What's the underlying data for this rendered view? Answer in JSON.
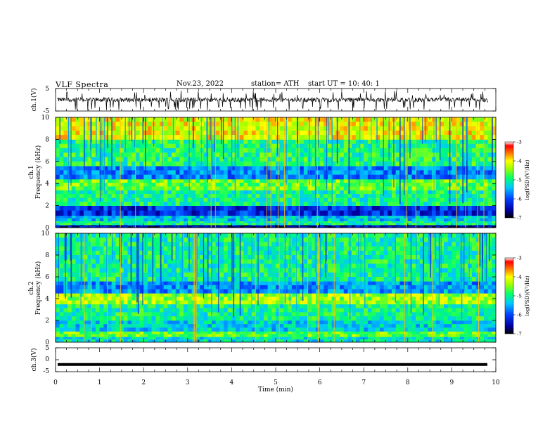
{
  "header": {
    "title": "VLF  Spectra",
    "date": "Nov.23, 2022",
    "station": "station= ATH",
    "start_ut": "start  UT  =    10: 40: 1"
  },
  "chart_data": [
    {
      "type": "line",
      "panel": "ch1-waveform",
      "ylabel": "ch.1(V)",
      "ylim": [
        -5,
        5
      ],
      "yticks": [
        "5",
        "-5"
      ],
      "xlim": [
        0,
        10
      ],
      "series": [
        {
          "color": "#000000",
          "baseline": 0,
          "amplitude_typical": 1,
          "spikes_to": [
            -5,
            4
          ]
        }
      ]
    },
    {
      "type": "heatmap",
      "panel": "ch1-spectrogram",
      "ylabel": "ch.1\nFrequency  (kHz)",
      "ylabel_line1": "ch.1",
      "ylabel_line2": "Frequency  (kHz)",
      "ylim": [
        0,
        10
      ],
      "yticks": [
        "0",
        "2",
        "4",
        "6",
        "8",
        "10"
      ],
      "xlim": [
        0,
        10
      ],
      "colorbar": {
        "label": "log(PSD)(V²/Hz)",
        "range": [
          -7,
          -3
        ],
        "ticks": [
          "-3",
          "-4",
          "-5",
          "-6",
          "-7"
        ]
      },
      "bands_khz": [
        {
          "from": 0.0,
          "to": 0.25,
          "level": -6.5
        },
        {
          "from": 0.25,
          "to": 0.6,
          "level": -5.0
        },
        {
          "from": 0.6,
          "to": 1.1,
          "level": -5.4
        },
        {
          "from": 1.1,
          "to": 2.0,
          "level": -6.2
        },
        {
          "from": 2.0,
          "to": 3.4,
          "level": -5.0
        },
        {
          "from": 3.4,
          "to": 4.4,
          "level": -4.6
        },
        {
          "from": 4.4,
          "to": 5.6,
          "level": -5.7
        },
        {
          "from": 5.6,
          "to": 8.0,
          "level": -4.9
        },
        {
          "from": 8.0,
          "to": 10.0,
          "level": -4.1
        }
      ]
    },
    {
      "type": "heatmap",
      "panel": "ch2-spectrogram",
      "ylabel": "ch.2\nFrequency  (kHz)",
      "ylabel_line1": "ch.2",
      "ylabel_line2": "Frequency  (kHz)",
      "ylim": [
        0,
        10
      ],
      "yticks": [
        "0",
        "2",
        "4",
        "6",
        "8",
        "10"
      ],
      "xlim": [
        0,
        10
      ],
      "colorbar": {
        "label": "log(PSD)(V²/Hz)",
        "range": [
          -7,
          -3
        ],
        "ticks": [
          "-3",
          "-4",
          "-5",
          "-6",
          "-7"
        ]
      },
      "bands_khz": [
        {
          "from": 0.0,
          "to": 0.5,
          "level": -5.2
        },
        {
          "from": 0.5,
          "to": 1.0,
          "level": -4.6
        },
        {
          "from": 1.0,
          "to": 2.0,
          "level": -5.3
        },
        {
          "from": 2.0,
          "to": 3.5,
          "level": -5.0
        },
        {
          "from": 3.5,
          "to": 4.5,
          "level": -4.4
        },
        {
          "from": 4.5,
          "to": 5.6,
          "level": -5.6
        },
        {
          "from": 5.6,
          "to": 10.0,
          "level": -5.0
        }
      ]
    },
    {
      "type": "line",
      "panel": "ch3-waveform",
      "ylabel": "ch.3(V)",
      "ylim": [
        -5,
        5
      ],
      "yticks": [
        "5",
        "0",
        "-5"
      ],
      "xlim": [
        0,
        10
      ],
      "xlabel": "Time  (min)",
      "xticks": [
        "0",
        "1",
        "2",
        "3",
        "4",
        "5",
        "6",
        "7",
        "8",
        "9",
        "10"
      ],
      "series": [
        {
          "color": "#000000",
          "baseline": -2
        }
      ]
    }
  ]
}
